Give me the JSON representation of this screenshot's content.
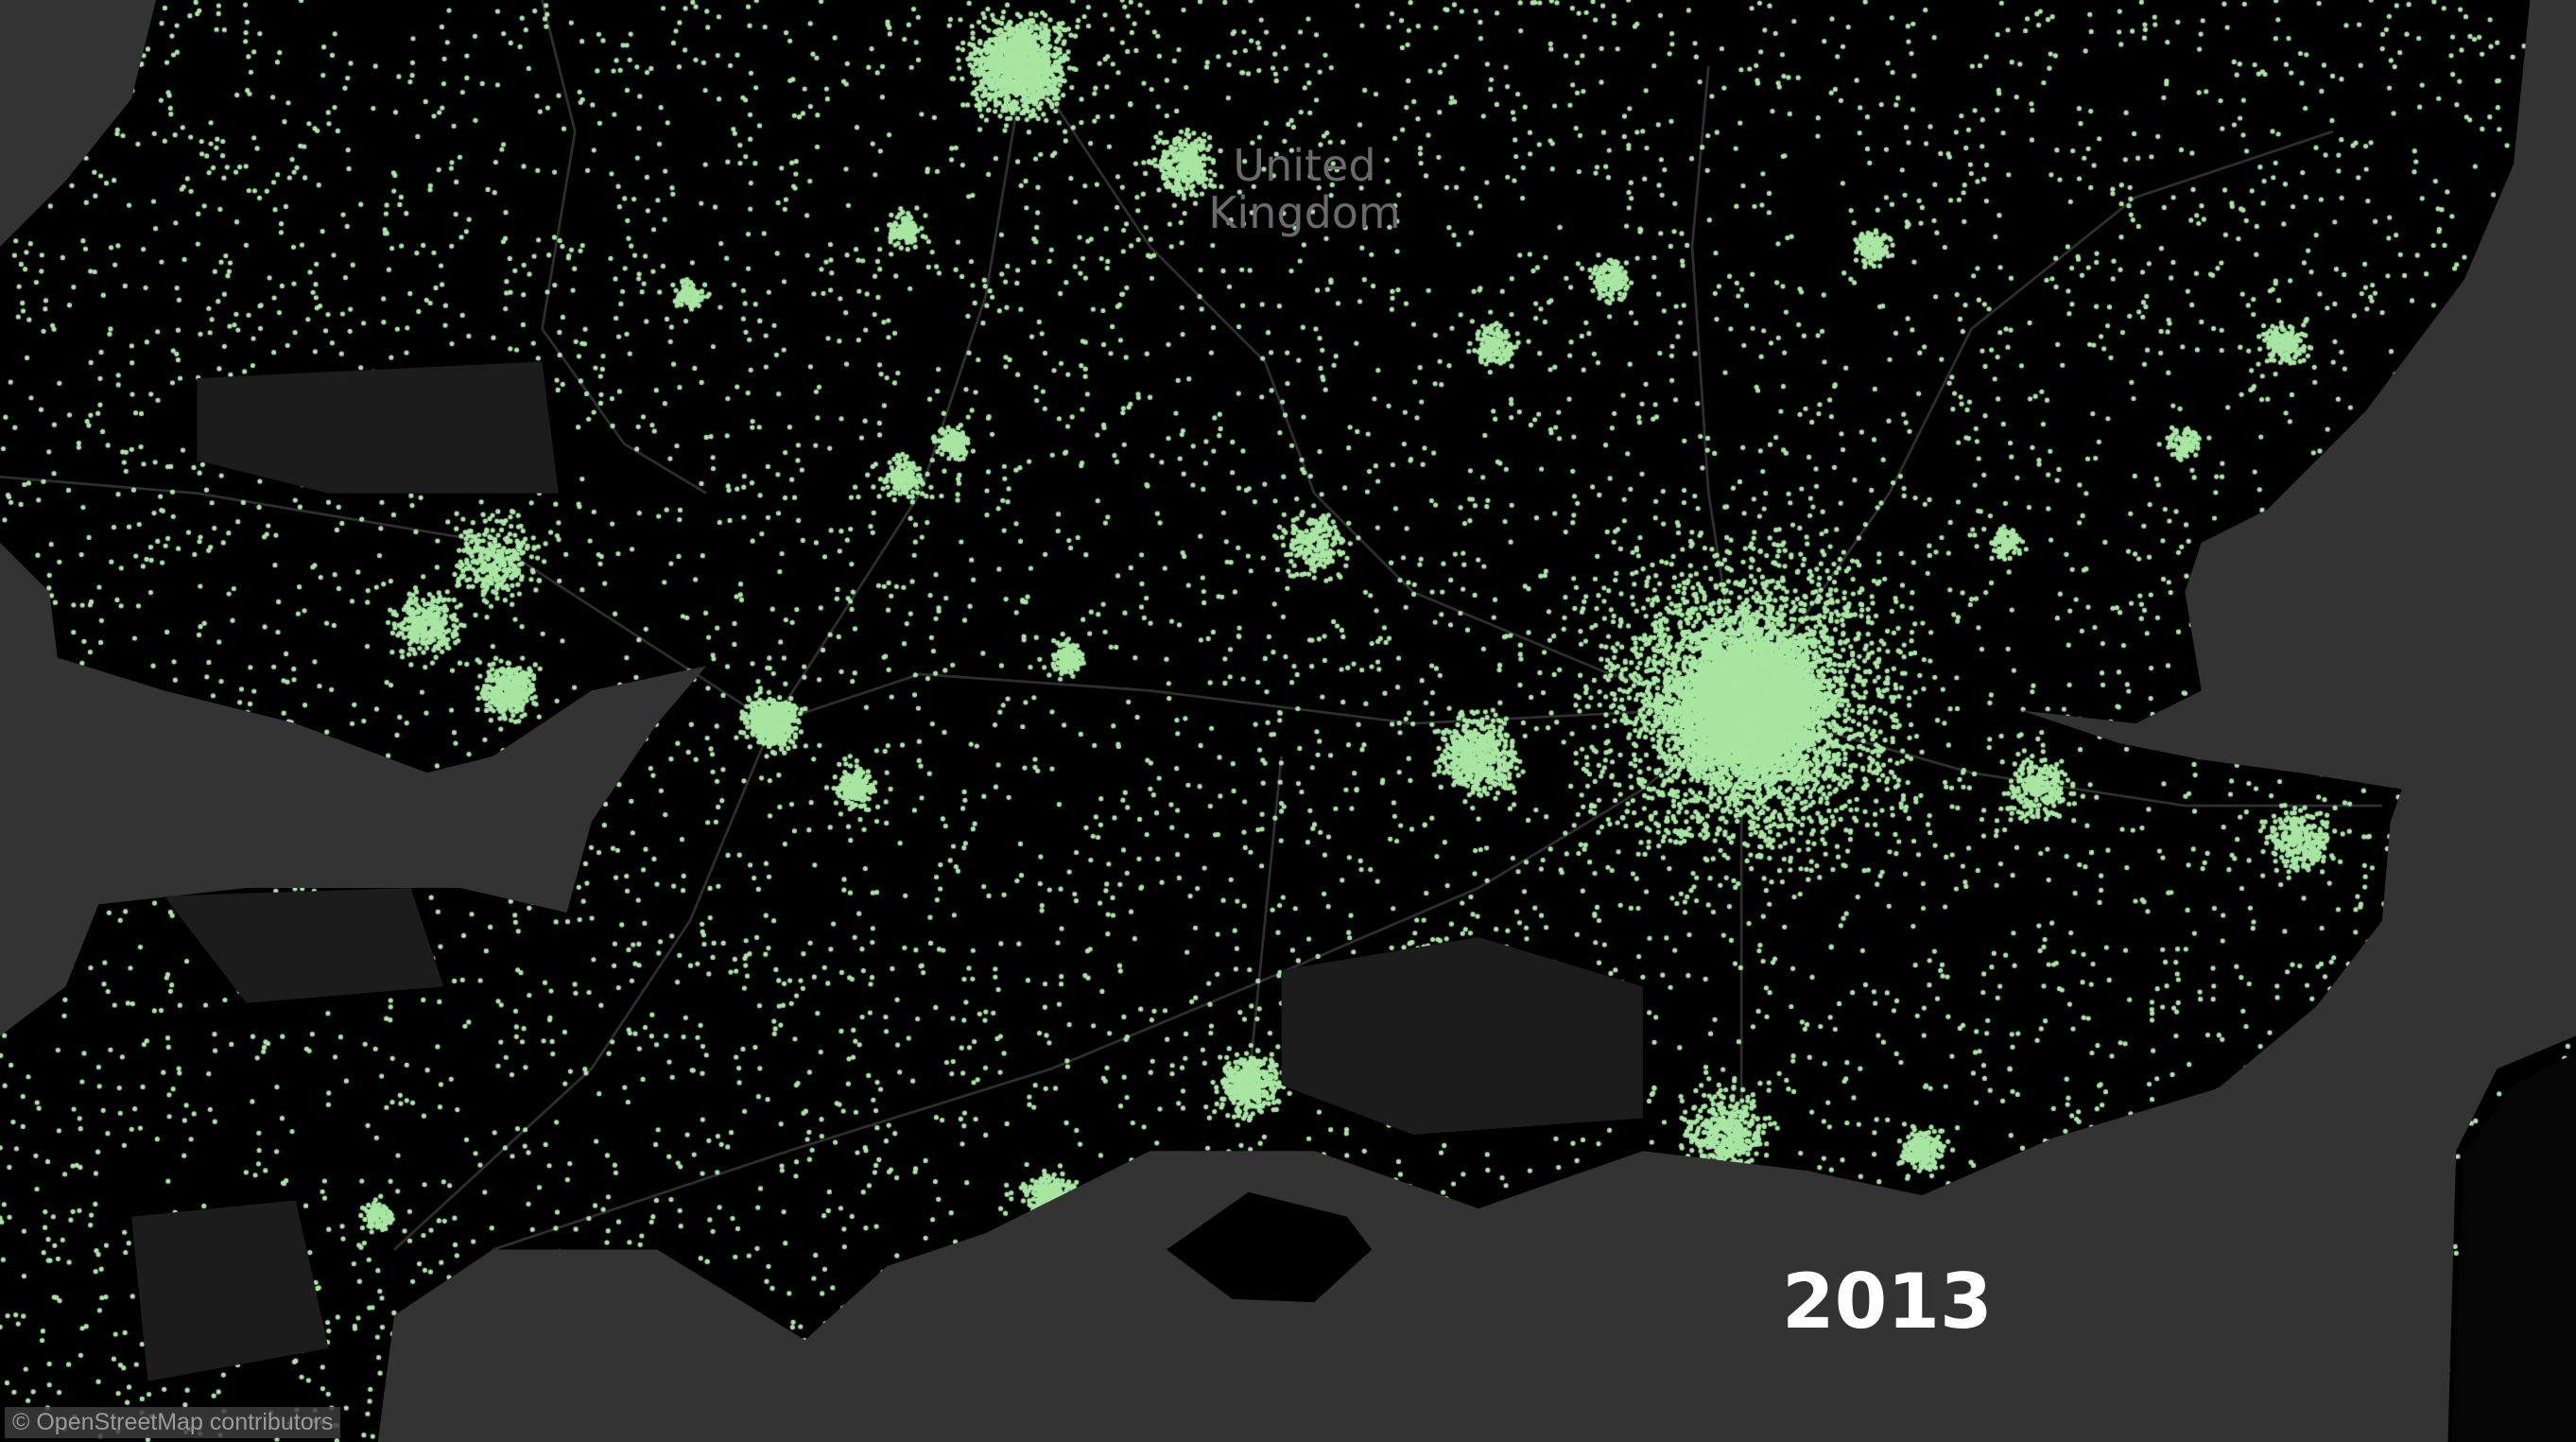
{
  "map": {
    "country_label": "United Kingdom",
    "year": "2013",
    "attribution": "© OpenStreetMap contributors",
    "colors": {
      "land": "#000000",
      "sea": "#333333",
      "dots": "#a8e6a3",
      "roads": "#3a3a3a",
      "label": "#6a6a6a",
      "year": "#ffffff"
    }
  }
}
